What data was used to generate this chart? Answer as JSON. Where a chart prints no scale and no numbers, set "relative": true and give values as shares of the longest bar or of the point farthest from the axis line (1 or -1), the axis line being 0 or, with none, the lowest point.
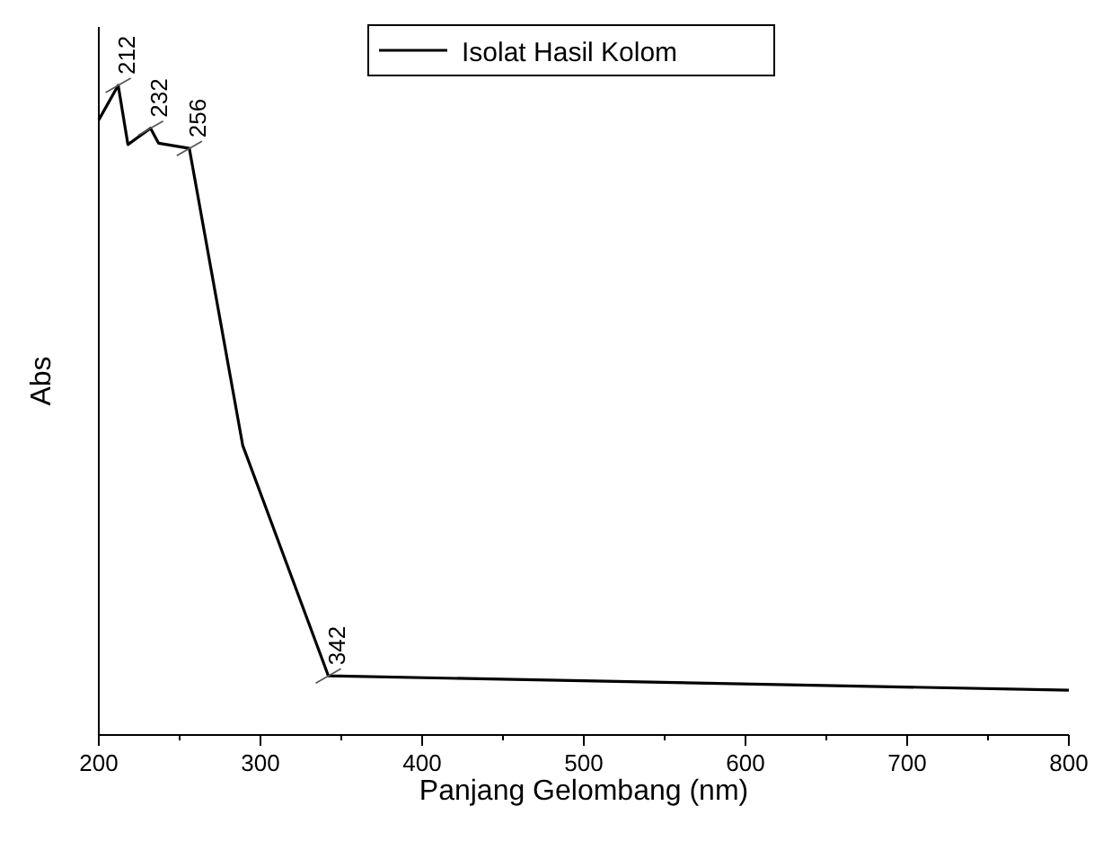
{
  "chart_data": {
    "type": "line",
    "relative": true,
    "xlabel": "Panjang Gelombang (nm)",
    "ylabel": "Abs",
    "x": [
      200,
      212,
      218,
      232,
      237,
      256,
      289,
      342,
      800
    ],
    "series": [
      {
        "name": "Isolat Hasil Kolom",
        "color": "#000000",
        "values": [
          0.947,
          1,
          0.909,
          0.934,
          0.911,
          0.903,
          0.446,
          0.091,
          0.069
        ]
      }
    ],
    "xlim": [
      200,
      800
    ],
    "xticks": [
      200,
      {
        "value": 250,
        "label": null
      },
      300,
      {
        "value": 350,
        "label": null
      },
      400,
      {
        "value": 450,
        "label": null
      },
      500,
      {
        "value": 550,
        "label": null
      },
      600,
      {
        "value": 650,
        "label": null
      },
      700,
      {
        "value": 750,
        "label": null
      },
      800
    ],
    "annotations": [
      {
        "text": "212",
        "x": 212,
        "y": 1
      },
      {
        "text": "232",
        "x": 232,
        "y": 0.934
      },
      {
        "text": "256",
        "x": 256,
        "y": 0.903
      },
      {
        "text": "342",
        "x": 342,
        "y": 0.091
      }
    ],
    "legend": "top",
    "marker": "none",
    "line_style": "solid",
    "grid": false
  }
}
